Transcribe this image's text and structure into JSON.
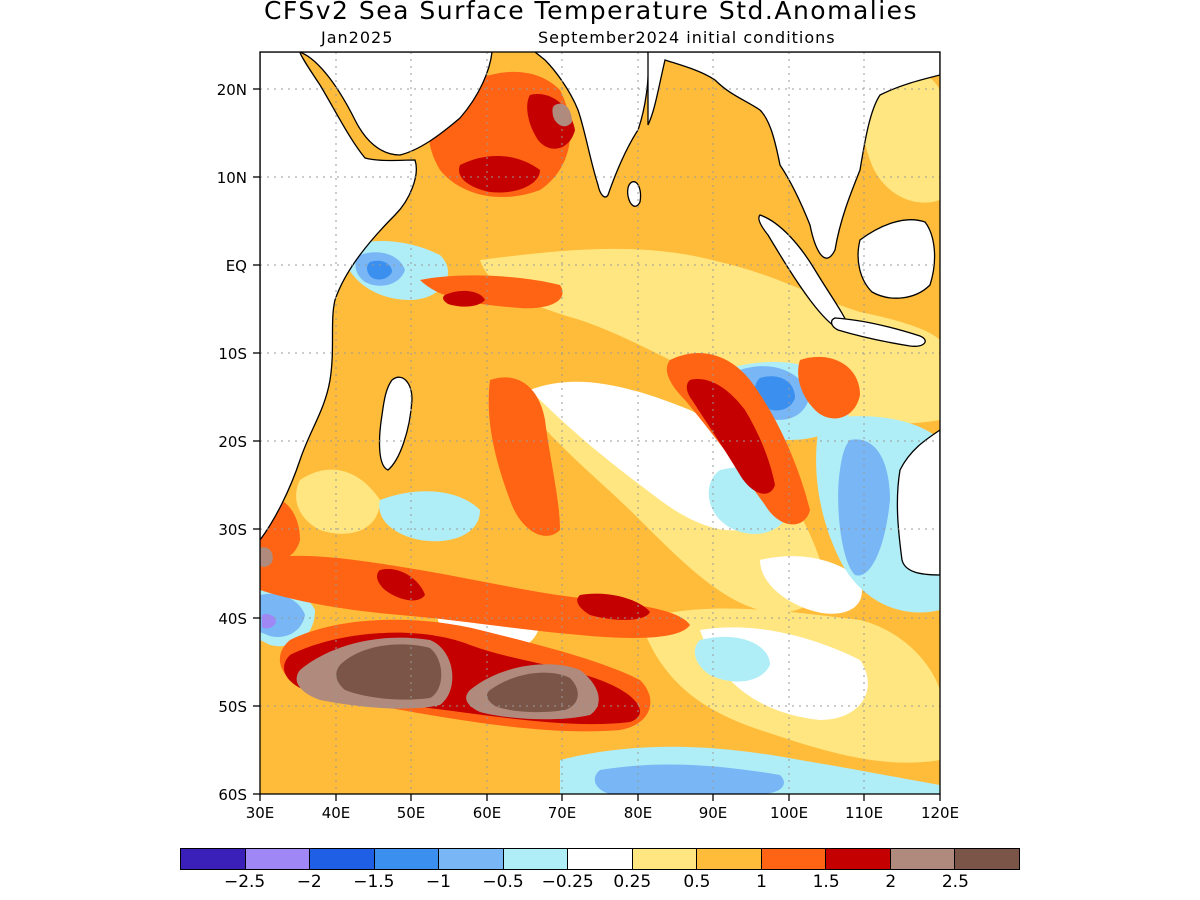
{
  "title": "CFSv2 Sea Surface Temperature Std.Anomalies",
  "subtitle_left": "Jan2025",
  "subtitle_right": "September2024 initial conditions",
  "map": {
    "lon_range": [
      30,
      120
    ],
    "lat_range": [
      -60,
      24
    ],
    "lon_ticks": [
      "30E",
      "40E",
      "50E",
      "60E",
      "70E",
      "80E",
      "90E",
      "100E",
      "110E",
      "120E"
    ],
    "lat_ticks": [
      "20N",
      "10N",
      "EQ",
      "10S",
      "20S",
      "30S",
      "40S",
      "50S",
      "60S"
    ],
    "gridlines": "dotted",
    "land_color": "#ffffff"
  },
  "colorbar": {
    "colors": [
      "#3a1fb8",
      "#9f87f5",
      "#1f5fe6",
      "#3a8fef",
      "#78b6f5",
      "#b0eef7",
      "#ffffff",
      "#ffe680",
      "#ffbc3a",
      "#ff6414",
      "#c40000",
      "#b08a7c",
      "#7a5548"
    ],
    "labels": [
      "−2.5",
      "−2",
      "−1.5",
      "−1",
      "−0.5",
      "−0.25",
      "0.25",
      "0.5",
      "1",
      "1.5",
      "2",
      "2.5"
    ]
  },
  "anomaly_regions": [
    {
      "level": "0.5",
      "color": "#ffe680"
    },
    {
      "level": "1",
      "color": "#ffbc3a"
    },
    {
      "level": "1.5",
      "color": "#ff6414"
    },
    {
      "level": "2",
      "color": "#c40000"
    },
    {
      "level": "2.5",
      "color": "#7a5548"
    },
    {
      "level": "-0.25",
      "color": "#b0eef7"
    },
    {
      "level": "-1",
      "color": "#78b6f5"
    },
    {
      "level": "-1.5",
      "color": "#3a8fef"
    }
  ]
}
